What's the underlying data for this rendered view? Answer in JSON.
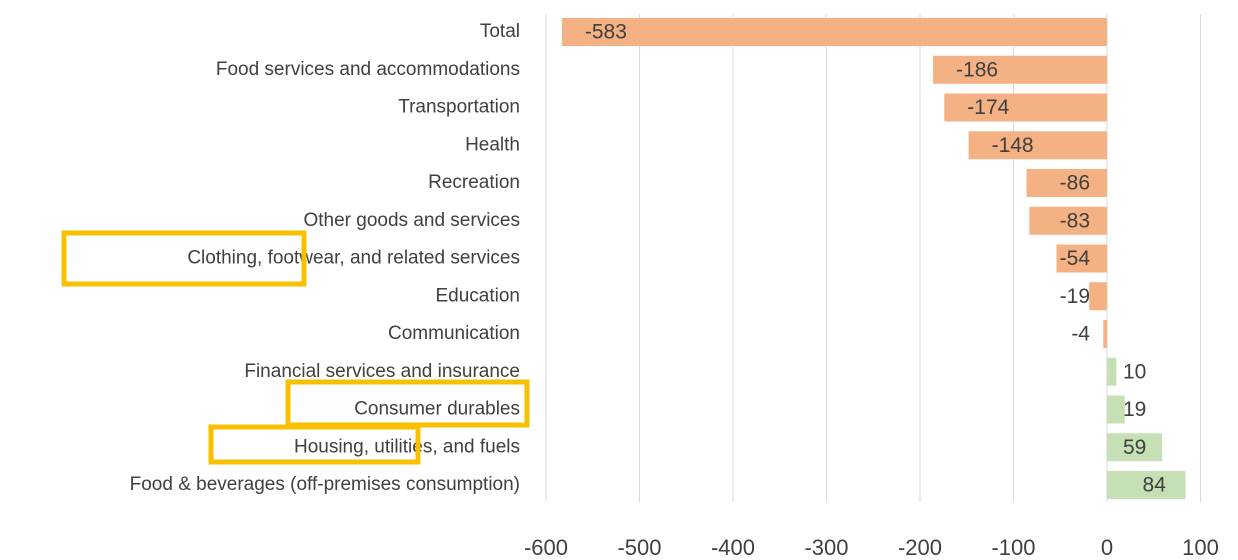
{
  "chart_data": {
    "type": "barh",
    "categories": [
      "Total",
      "Food services and accommodations",
      "Transportation",
      "Health",
      "Recreation",
      "Other goods and services",
      "Clothing, footwear, and related services",
      "Education",
      "Communication",
      "Financial services and insurance",
      "Consumer durables",
      "Housing, utilities, and fuels",
      "Food & beverages (off-premises consumption)"
    ],
    "values": [
      -583,
      -186,
      -174,
      -148,
      -86,
      -83,
      -54,
      -19,
      -4,
      10,
      19,
      59,
      84
    ],
    "negative_color": "#f4b183",
    "positive_color": "#c5e0b4",
    "xlim": [
      -600,
      100
    ],
    "xticks": [
      -600,
      -500,
      -400,
      -300,
      -200,
      -100,
      0,
      100
    ],
    "grid": true
  }
}
